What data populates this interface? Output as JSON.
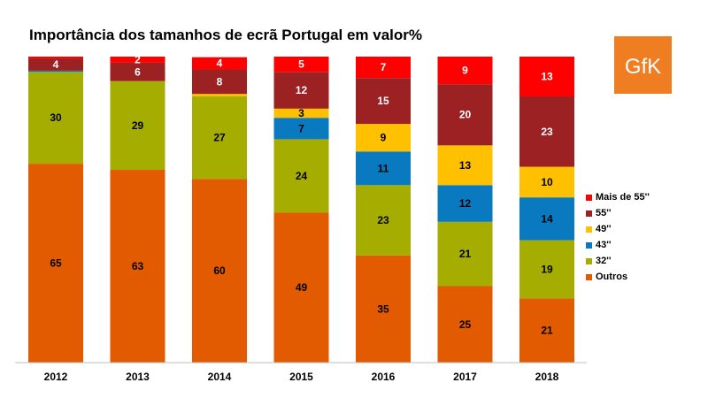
{
  "title": "Importância dos tamanhos de ecrã Portugal em valor%",
  "logo": {
    "text": "GfK",
    "color": "#ef7d22"
  },
  "chart_data": {
    "type": "bar",
    "stacked": true,
    "categories": [
      "2012",
      "2013",
      "2014",
      "2015",
      "2016",
      "2017",
      "2018"
    ],
    "series": [
      {
        "name": "Outros",
        "color": "#e35b00",
        "values": [
          65,
          63,
          60,
          49,
          35,
          25,
          21
        ],
        "labels": [
          "65",
          "63",
          "60",
          "49",
          "35",
          "25",
          "21"
        ]
      },
      {
        "name": "32''",
        "color": "#a5ad00",
        "values": [
          30,
          29,
          27,
          24,
          23,
          21,
          19
        ],
        "labels": [
          "30",
          "29",
          "27",
          "24",
          "23",
          "21",
          "19"
        ]
      },
      {
        "name": "43''",
        "color": "#0a7ac0",
        "values": [
          0.4,
          0,
          0,
          7,
          11,
          12,
          14
        ],
        "labels": [
          "",
          "",
          "",
          "7",
          "11",
          "12",
          "14"
        ]
      },
      {
        "name": "49''",
        "color": "#ffc000",
        "values": [
          0,
          0,
          0.8,
          3,
          9,
          13,
          10
        ],
        "labels": [
          "",
          "",
          "",
          "3",
          "9",
          "13",
          "10"
        ]
      },
      {
        "name": "55''",
        "color": "#9b2122",
        "values": [
          4,
          6,
          8,
          12,
          15,
          20,
          23
        ],
        "labels": [
          "4",
          "6",
          "8",
          "12",
          "15",
          "20",
          "23"
        ]
      },
      {
        "name": "Mais de 55''",
        "color": "#ff0000",
        "values": [
          0.6,
          2,
          4,
          5,
          7,
          9,
          13
        ],
        "labels": [
          "",
          "2",
          "4",
          "5",
          "7",
          "9",
          "13"
        ]
      }
    ],
    "ylim": [
      0,
      100
    ],
    "legend_position": "right",
    "grid": false
  }
}
